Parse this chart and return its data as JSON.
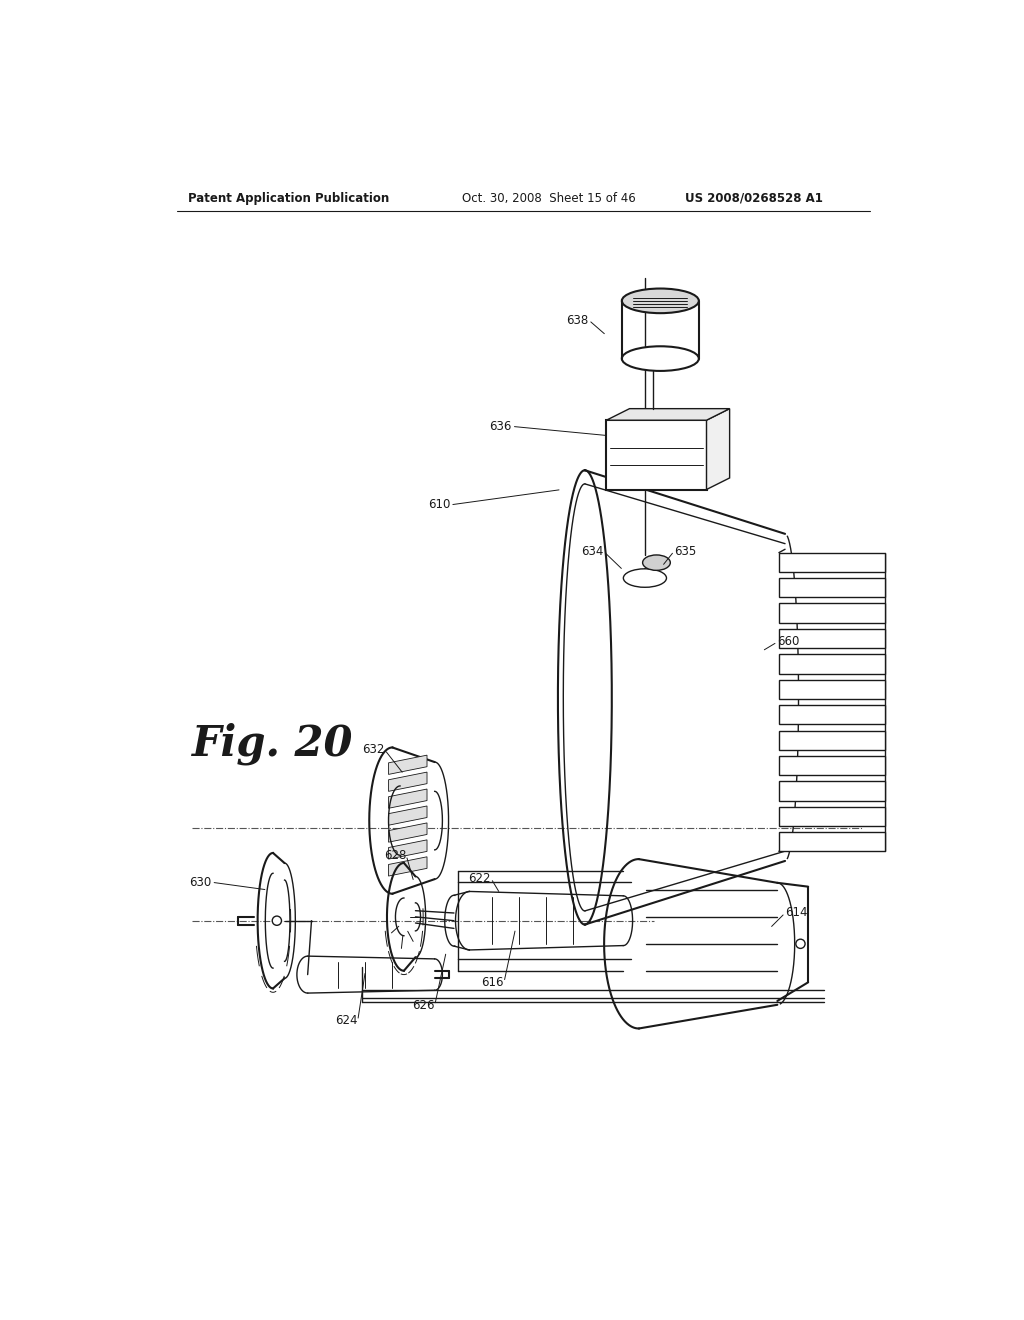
{
  "bg_color": "#ffffff",
  "header_left": "Patent Application Publication",
  "header_mid": "Oct. 30, 2008  Sheet 15 of 46",
  "header_right": "US 2008/0268528 A1",
  "fig_label": "Fig. 20",
  "color": "#1a1a1a"
}
